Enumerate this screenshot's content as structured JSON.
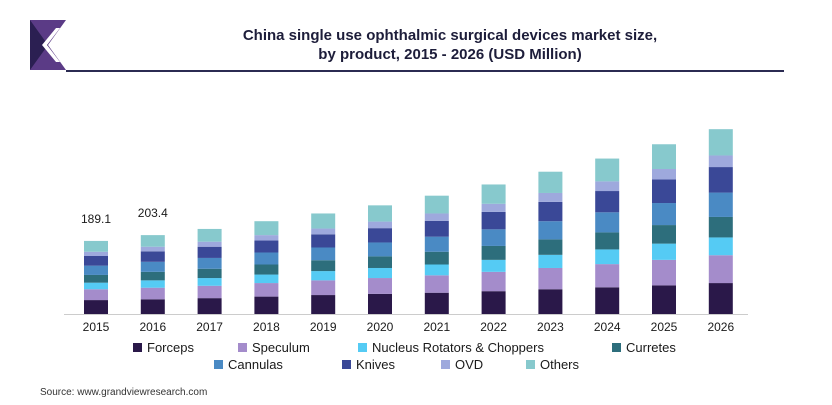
{
  "title_line1": "China single use ophthalmic surgical devices market size,",
  "title_line2": "by product, 2015 - 2026 (USD Million)",
  "source": "Source: www.grandviewresearch.com",
  "logo_icon": "grand-view-research-logo",
  "chart_data": {
    "type": "bar",
    "stacked": true,
    "title": "China single use ophthalmic surgical devices market size, by product, 2015 - 2026 (USD Million)",
    "categories": [
      "2015",
      "2016",
      "2017",
      "2018",
      "2019",
      "2020",
      "2021",
      "2022",
      "2023",
      "2024",
      "2025",
      "2026"
    ],
    "ylim": [
      0,
      600
    ],
    "grid": false,
    "legend_position": "bottom",
    "totals_shown": [
      "189.1",
      "203.4",
      "",
      "",
      "",
      "",
      "",
      "",
      "",
      "",
      "",
      ""
    ],
    "series": [
      {
        "name": "Forceps",
        "color": "#2a1849",
        "values": [
          36,
          38,
          41,
          45,
          49,
          52,
          55,
          59,
          64,
          69,
          74,
          80
        ]
      },
      {
        "name": "Speculum",
        "color": "#a48ccb",
        "values": [
          28,
          30,
          32,
          35,
          38,
          41,
          45,
          50,
          55,
          60,
          66,
          72
        ]
      },
      {
        "name": "Nucleus Rotators & Choppers",
        "color": "#55cbf4",
        "values": [
          17,
          19,
          20,
          22,
          24,
          26,
          28,
          31,
          34,
          38,
          42,
          46
        ]
      },
      {
        "name": "Curretes",
        "color": "#2d6e7c",
        "values": [
          20,
          22,
          24,
          26,
          28,
          30,
          33,
          36,
          40,
          44,
          48,
          53
        ]
      },
      {
        "name": "Cannulas",
        "color": "#4a8ac4",
        "values": [
          24,
          26,
          28,
          31,
          33,
          36,
          39,
          43,
          47,
          52,
          57,
          63
        ]
      },
      {
        "name": "Knives",
        "color": "#3a4897",
        "values": [
          25,
          27,
          29,
          31,
          34,
          37,
          41,
          45,
          50,
          55,
          61,
          66
        ]
      },
      {
        "name": "OVD",
        "color": "#9ea9dd",
        "values": [
          11,
          12,
          13,
          14,
          15,
          17,
          19,
          21,
          23,
          25,
          27,
          30
        ]
      },
      {
        "name": "Others",
        "color": "#87c9cd",
        "values": [
          28,
          30,
          33,
          36,
          39,
          42,
          46,
          50,
          55,
          59,
          64,
          68
        ]
      }
    ]
  }
}
